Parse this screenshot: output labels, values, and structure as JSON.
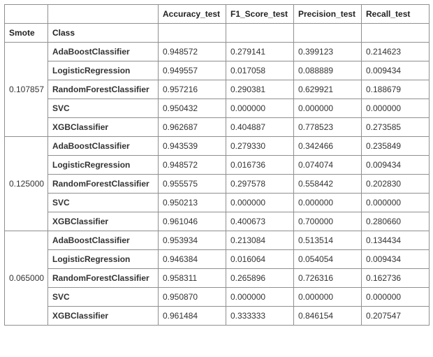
{
  "columns": {
    "smote": "Smote",
    "class": "Class",
    "metrics": [
      "Accuracy_test",
      "F1_Score_test",
      "Precision_test",
      "Recall_test"
    ]
  },
  "groups": [
    {
      "smote": "0.107857",
      "rows": [
        {
          "class": "AdaBoostClassifier",
          "values": [
            "0.948572",
            "0.279141",
            "0.399123",
            "0.214623"
          ]
        },
        {
          "class": "LogisticRegression",
          "values": [
            "0.949557",
            "0.017058",
            "0.088889",
            "0.009434"
          ]
        },
        {
          "class": "RandomForestClassifier",
          "values": [
            "0.957216",
            "0.290381",
            "0.629921",
            "0.188679"
          ]
        },
        {
          "class": "SVC",
          "values": [
            "0.950432",
            "0.000000",
            "0.000000",
            "0.000000"
          ]
        },
        {
          "class": "XGBClassifier",
          "values": [
            "0.962687",
            "0.404887",
            "0.778523",
            "0.273585"
          ]
        }
      ]
    },
    {
      "smote": "0.125000",
      "rows": [
        {
          "class": "AdaBoostClassifier",
          "values": [
            "0.943539",
            "0.279330",
            "0.342466",
            "0.235849"
          ]
        },
        {
          "class": "LogisticRegression",
          "values": [
            "0.948572",
            "0.016736",
            "0.074074",
            "0.009434"
          ]
        },
        {
          "class": "RandomForestClassifier",
          "values": [
            "0.955575",
            "0.297578",
            "0.558442",
            "0.202830"
          ]
        },
        {
          "class": "SVC",
          "values": [
            "0.950213",
            "0.000000",
            "0.000000",
            "0.000000"
          ]
        },
        {
          "class": "XGBClassifier",
          "values": [
            "0.961046",
            "0.400673",
            "0.700000",
            "0.280660"
          ]
        }
      ]
    },
    {
      "smote": "0.065000",
      "rows": [
        {
          "class": "AdaBoostClassifier",
          "values": [
            "0.953934",
            "0.213084",
            "0.513514",
            "0.134434"
          ]
        },
        {
          "class": "LogisticRegression",
          "values": [
            "0.946384",
            "0.016064",
            "0.054054",
            "0.009434"
          ]
        },
        {
          "class": "RandomForestClassifier",
          "values": [
            "0.958311",
            "0.265896",
            "0.726316",
            "0.162736"
          ]
        },
        {
          "class": "SVC",
          "values": [
            "0.950870",
            "0.000000",
            "0.000000",
            "0.000000"
          ]
        },
        {
          "class": "XGBClassifier",
          "values": [
            "0.961484",
            "0.333333",
            "0.846154",
            "0.207547"
          ]
        }
      ]
    }
  ]
}
